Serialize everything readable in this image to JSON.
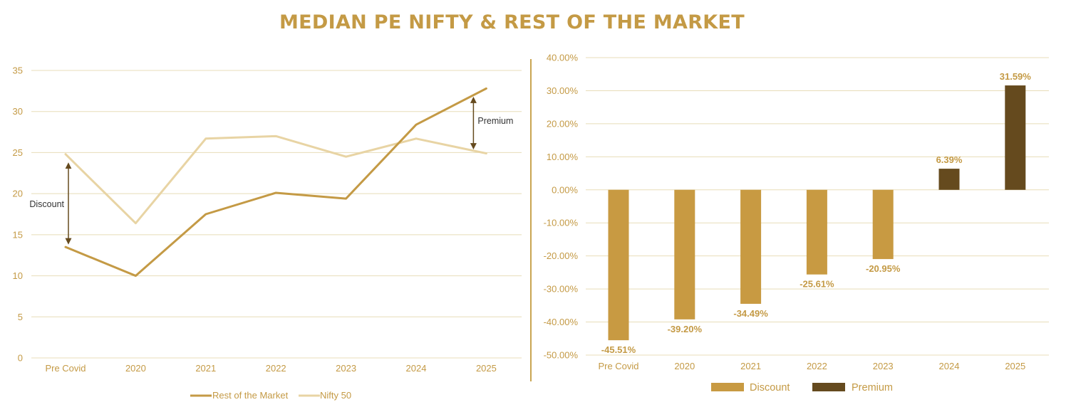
{
  "title": "MEDIAN PE NIFTY & REST OF THE MARKET",
  "colors": {
    "title": "#C49A45",
    "rest_line": "#C49A45",
    "nifty_line": "#E8D4A4",
    "grid": "#E8DDB8",
    "discount": "#C89A42",
    "premium": "#654A1E",
    "annotation_arrow": "#654A1E",
    "divider": "#C9A552"
  },
  "chart_data": [
    {
      "type": "line",
      "title": "",
      "categories": [
        "Pre Covid",
        "2020",
        "2021",
        "2022",
        "2023",
        "2024",
        "2025"
      ],
      "y_ticks": [
        "0",
        "5",
        "10",
        "15",
        "20",
        "25",
        "30",
        "35"
      ],
      "ylim": [
        0,
        35
      ],
      "grid": true,
      "legend_position": "bottom-center",
      "series": [
        {
          "name": "Rest of the Market",
          "values": [
            13.5,
            10.0,
            17.5,
            20.1,
            19.4,
            28.4,
            32.8
          ]
        },
        {
          "name": "Nifty 50",
          "values": [
            24.8,
            16.4,
            26.7,
            27.0,
            24.5,
            26.7,
            24.9
          ]
        }
      ],
      "annotations": [
        {
          "label": "Discount",
          "category": "Pre Covid"
        },
        {
          "label": "Premium",
          "category": "2025"
        }
      ]
    },
    {
      "type": "bar",
      "title": "",
      "categories": [
        "Pre Covid",
        "2020",
        "2021",
        "2022",
        "2023",
        "2024",
        "2025"
      ],
      "y_ticks": [
        "-50.00%",
        "-40.00%",
        "-30.00%",
        "-20.00%",
        "-10.00%",
        "0.00%",
        "10.00%",
        "20.00%",
        "30.00%",
        "40.00%"
      ],
      "ylim": [
        -50,
        40
      ],
      "grid": true,
      "legend_position": "bottom-center",
      "legend": [
        "Discount",
        "Premium"
      ],
      "values": [
        -45.51,
        -39.2,
        -34.49,
        -25.61,
        -20.95,
        6.39,
        31.59
      ],
      "data_labels": [
        "-45.51%",
        "-39.20%",
        "-34.49%",
        "-25.61%",
        "-20.95%",
        "6.39%",
        "31.59%"
      ],
      "series_assignment": [
        "Discount",
        "Discount",
        "Discount",
        "Discount",
        "Discount",
        "Premium",
        "Premium"
      ]
    }
  ]
}
